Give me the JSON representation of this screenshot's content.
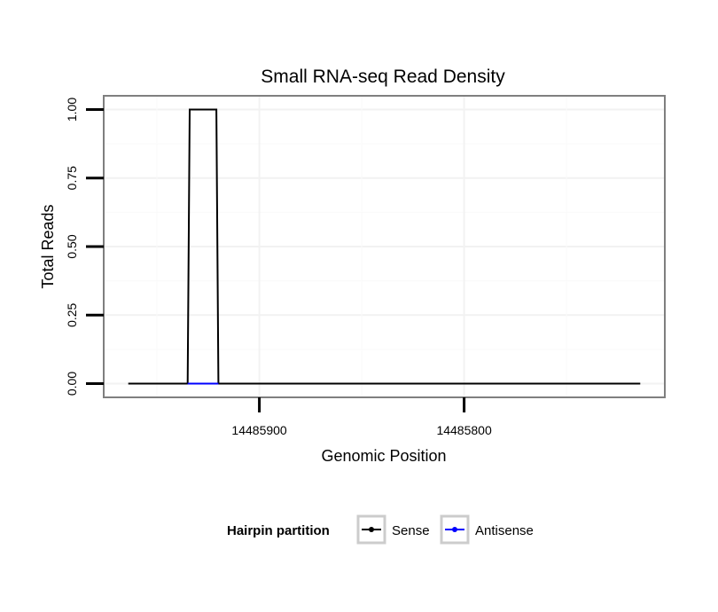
{
  "chart_data": {
    "type": "line",
    "title": "Small RNA-seq Read Density",
    "xlabel": "Genomic Position",
    "ylabel": "Total Reads",
    "x_reversed": true,
    "xlim": [
      14485976,
      14485702
    ],
    "ylim": [
      -0.05,
      1.05
    ],
    "x_ticks": [
      14485900,
      14485800
    ],
    "x_tick_labels": [
      "14485900",
      "14485800"
    ],
    "y_ticks": [
      0,
      0.25,
      0.5,
      0.75,
      1.0
    ],
    "y_tick_labels": [
      "0.00",
      "0.25",
      "0.50",
      "0.75",
      "1.00"
    ],
    "grid": true,
    "series": [
      {
        "name": "Sense",
        "color": "#000000",
        "x": [
          14485964,
          14485935,
          14485934,
          14485921,
          14485920,
          14485714
        ],
        "y": [
          0,
          0,
          1,
          1,
          0,
          0
        ]
      },
      {
        "name": "Antisense",
        "color": "#0000ff",
        "x": [
          14485935,
          14485920
        ],
        "y": [
          0,
          0
        ]
      }
    ],
    "legend": {
      "title": "Hairpin partition",
      "position": "bottom",
      "entries": [
        "Sense",
        "Antisense"
      ]
    }
  }
}
